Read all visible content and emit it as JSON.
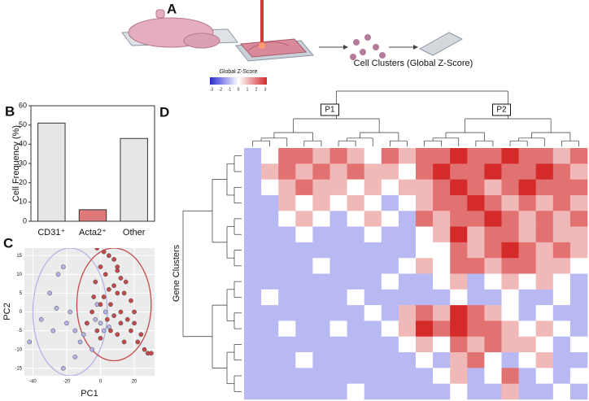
{
  "figure_a": {
    "panel": "A"
  },
  "chart_data": [
    {
      "type": "bar",
      "panel": "B",
      "ylabel": "Cell Frequency (%)",
      "categories": [
        "CD31⁺",
        "Acta2⁺",
        "Other"
      ],
      "values": [
        51,
        6,
        43
      ],
      "colors": [
        "#e6e6e6",
        "#e07a7a",
        "#e6e6e6"
      ],
      "ylim": [
        0,
        60
      ],
      "yticks": [
        0,
        10,
        20,
        30,
        40,
        50,
        60
      ]
    },
    {
      "type": "scatter",
      "panel": "C",
      "xlabel": "PC1",
      "ylabel": "PC2",
      "xlim": [
        -45,
        32
      ],
      "ylim": [
        -17,
        17
      ],
      "xticks": [
        -40,
        -20,
        0,
        20
      ],
      "yticks": [
        -15,
        -10,
        -5,
        0,
        5,
        10,
        15
      ],
      "grid": true,
      "series": [
        {
          "color": "#b4b4ea",
          "ellipse": {
            "cx": -18,
            "cy": 0,
            "rx": 22,
            "ry": 17
          },
          "x": [
            -42,
            -35,
            -30,
            -28,
            -25,
            -22,
            -20,
            -18,
            -15,
            -12,
            -10,
            -8,
            -5,
            -3,
            -2,
            0,
            2,
            3,
            -22,
            -15,
            -26,
            5
          ],
          "y": [
            -8,
            -2,
            5,
            -5,
            10,
            12,
            -3,
            0,
            -5,
            -8,
            -6,
            -3,
            -10,
            -2,
            2,
            -3,
            -5,
            0,
            -15,
            -12,
            1,
            -4
          ]
        },
        {
          "color": "#c24a4a",
          "ellipse": {
            "cx": 8,
            "cy": 2,
            "rx": 22,
            "ry": 15
          },
          "x": [
            -2,
            2,
            5,
            8,
            0,
            3,
            10,
            12,
            15,
            8,
            5,
            -3,
            2,
            10,
            14,
            18,
            20,
            16,
            12,
            8,
            4,
            -2,
            0,
            6,
            10,
            14,
            18,
            22,
            26,
            28,
            30,
            -5,
            -8,
            0,
            6,
            12,
            20,
            24,
            -4,
            10
          ],
          "y": [
            17,
            16,
            15,
            14,
            12,
            10,
            11,
            9,
            8,
            7,
            6,
            8,
            4,
            5,
            5,
            3,
            0,
            -2,
            0,
            -1,
            -2,
            -5,
            -7,
            -5,
            -6,
            -8,
            -5,
            -8,
            -10,
            -11,
            -11,
            0,
            -3,
            2,
            2,
            -3,
            -3,
            -6,
            4,
            12
          ]
        }
      ]
    },
    {
      "type": "heatmap",
      "panel": "D",
      "title": "Cell Clusters (Global Z-Score)",
      "ylabel": "Gene Clusters",
      "colorbar_title": "Global Z-Score",
      "clim": [
        -3,
        3
      ],
      "colorbar_ticks": [
        -3,
        -2,
        -1,
        0,
        1,
        2,
        3
      ],
      "colorscale": [
        "#2a2ad8",
        "#ffffff",
        "#d42a2a"
      ],
      "cluster_labels": [
        "P1",
        "P2"
      ],
      "values": [
        [
          -1,
          0,
          2,
          2,
          1,
          2,
          1,
          0,
          2,
          1,
          2,
          2,
          3,
          2,
          2,
          3,
          2,
          2,
          1,
          2
        ],
        [
          -1,
          1,
          2,
          1,
          2,
          1,
          2,
          1,
          1,
          0,
          2,
          3,
          2,
          2,
          3,
          2,
          2,
          3,
          2,
          1
        ],
        [
          -1,
          0,
          1,
          2,
          1,
          1,
          0,
          1,
          0,
          1,
          1,
          2,
          3,
          2,
          1,
          2,
          3,
          2,
          2,
          2
        ],
        [
          -1,
          -1,
          1,
          0,
          1,
          0,
          1,
          0,
          -1,
          0,
          1,
          2,
          2,
          3,
          2,
          1,
          2,
          1,
          2,
          1
        ],
        [
          -1,
          -1,
          0,
          1,
          0,
          -1,
          0,
          1,
          0,
          -1,
          2,
          1,
          2,
          2,
          3,
          2,
          1,
          2,
          1,
          2
        ],
        [
          -1,
          -1,
          -1,
          0,
          -1,
          -1,
          -1,
          0,
          -1,
          -1,
          0,
          1,
          3,
          1,
          2,
          2,
          1,
          2,
          1,
          1
        ],
        [
          -1,
          -1,
          -1,
          -1,
          -1,
          -1,
          -1,
          -1,
          -1,
          -1,
          0,
          0,
          2,
          1,
          2,
          3,
          2,
          1,
          2,
          1
        ],
        [
          -1,
          -1,
          -1,
          -1,
          0,
          -1,
          -1,
          -1,
          -1,
          0,
          1,
          0,
          2,
          2,
          1,
          2,
          2,
          1,
          1,
          0
        ],
        [
          -1,
          -1,
          -1,
          -1,
          -1,
          -1,
          -1,
          -1,
          0,
          -1,
          -1,
          0,
          1,
          -1,
          0,
          1,
          0,
          1,
          0,
          -1
        ],
        [
          -1,
          0,
          -1,
          -1,
          -1,
          -1,
          0,
          -1,
          -1,
          -1,
          -1,
          -1,
          0,
          -1,
          -1,
          0,
          -1,
          -1,
          0,
          -1
        ],
        [
          -1,
          -1,
          -1,
          -1,
          -1,
          -1,
          -1,
          0,
          -1,
          1,
          2,
          1,
          3,
          2,
          1,
          0,
          -1,
          0,
          -1,
          -1
        ],
        [
          -1,
          -1,
          0,
          -1,
          -1,
          0,
          -1,
          -1,
          0,
          1,
          3,
          2,
          3,
          2,
          2,
          1,
          0,
          1,
          0,
          -1
        ],
        [
          -1,
          -1,
          -1,
          -1,
          -1,
          -1,
          -1,
          -1,
          -1,
          0,
          1,
          0,
          2,
          1,
          2,
          1,
          1,
          0,
          -1,
          0
        ],
        [
          -1,
          -1,
          -1,
          0,
          -1,
          -1,
          -1,
          -1,
          -1,
          -1,
          0,
          -1,
          1,
          2,
          0,
          -1,
          0,
          1,
          -1,
          -1
        ],
        [
          -1,
          -1,
          -1,
          -1,
          -1,
          -1,
          -1,
          -1,
          -1,
          -1,
          -1,
          0,
          1,
          -1,
          0,
          2,
          -1,
          0,
          -1,
          0
        ],
        [
          -1,
          -1,
          -1,
          -1,
          -1,
          -1,
          0,
          -1,
          -1,
          -1,
          -1,
          -1,
          0,
          -1,
          -1,
          1,
          -1,
          -1,
          0,
          -1
        ]
      ]
    }
  ]
}
